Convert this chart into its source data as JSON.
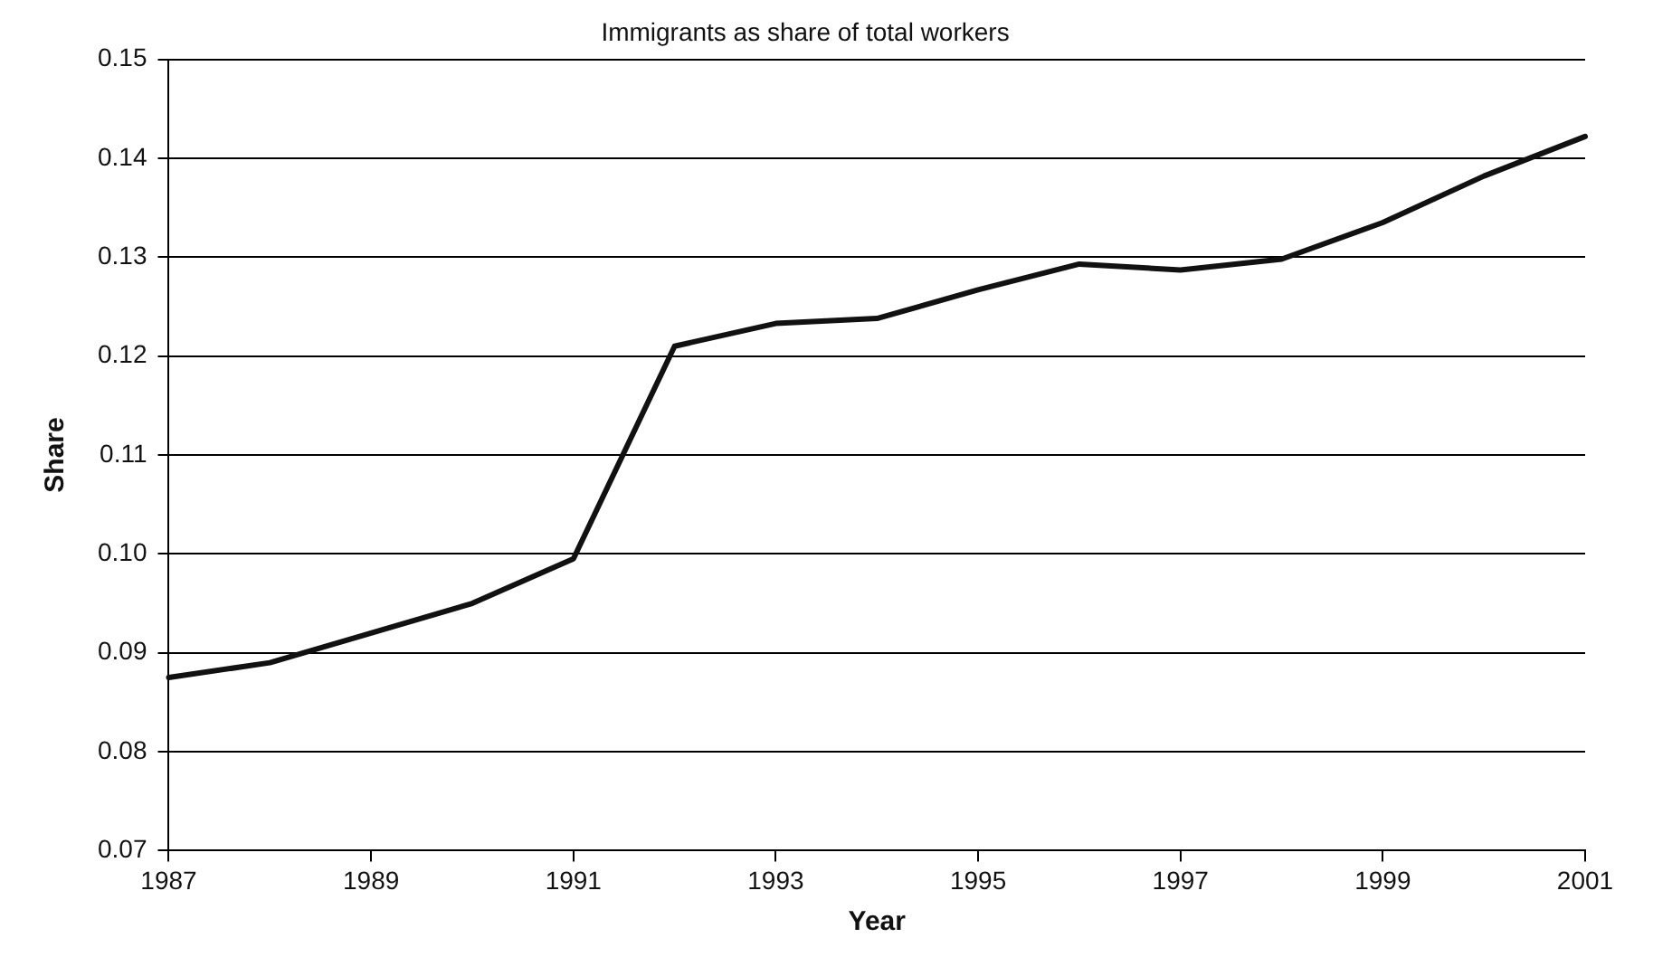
{
  "chart_data": {
    "type": "line",
    "title": "Immigrants as share of total workers",
    "xlabel": "Year",
    "ylabel": "Share",
    "x": [
      1987,
      1988,
      1989,
      1990,
      1991,
      1992,
      1993,
      1994,
      1995,
      1996,
      1997,
      1998,
      1999,
      2000,
      2001
    ],
    "series": [
      {
        "color": "#111111",
        "values": [
          0.0875,
          0.089,
          0.092,
          0.095,
          0.0995,
          0.121,
          0.1233,
          0.1238,
          0.1267,
          0.1293,
          0.1287,
          0.1298,
          0.1335,
          0.1382,
          0.1422
        ]
      }
    ],
    "xlim": [
      1987,
      2001
    ],
    "xticks": [
      1987,
      1989,
      1991,
      1993,
      1995,
      1997,
      1999,
      2001
    ],
    "ylim": [
      0.07,
      0.15
    ],
    "yticks": [
      {
        "value": 0.07,
        "label": "0.07"
      },
      {
        "value": 0.08,
        "label": "0.08"
      },
      {
        "value": 0.09,
        "label": "0.09"
      },
      {
        "value": 0.1,
        "label": "0.10"
      },
      {
        "value": 0.11,
        "label": "0.11"
      },
      {
        "value": 0.12,
        "label": "0.12"
      },
      {
        "value": 0.13,
        "label": "0.13"
      },
      {
        "value": 0.14,
        "label": "0.14"
      },
      {
        "value": 0.15,
        "label": "0.15"
      }
    ],
    "grid": "y",
    "legend": false,
    "marker": "none",
    "line_style": "solid"
  }
}
